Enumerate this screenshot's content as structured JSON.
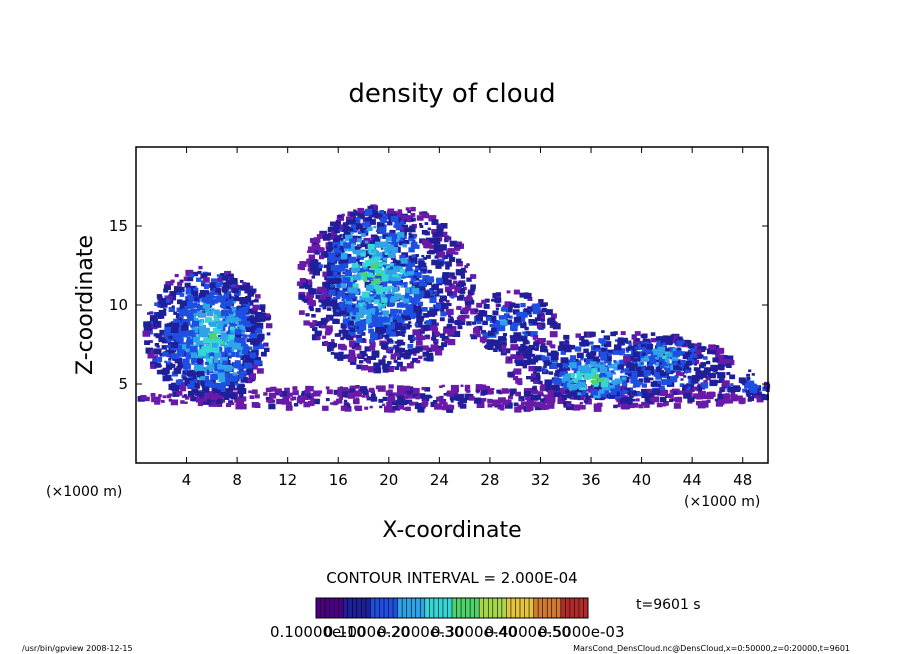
{
  "chart_data": {
    "type": "heatmap",
    "title": "density of cloud",
    "xlabel": "X-coordinate",
    "ylabel": "Z-coordinate",
    "x_unit": "(×1000 m)",
    "z_unit": "(×1000 m)",
    "xlim": [
      0,
      50
    ],
    "ylim": [
      0,
      20
    ],
    "x_ticks": [
      4,
      8,
      12,
      16,
      20,
      24,
      28,
      32,
      36,
      40,
      44,
      48
    ],
    "y_ticks": [
      5,
      10,
      15
    ],
    "grid": false,
    "contour_interval_text": "CONTOUR INTERVAL = 2.000E-04",
    "time_text": "t=9601 s",
    "colorbar_labels": [
      "0.10000e-10",
      "0.1000e-20",
      "0.2000e-30",
      "0.3000e-40",
      "0.4000e-50",
      "0.5000e-03"
    ],
    "colorbar_colors": [
      "#4b0082",
      "#1f1f9a",
      "#1e4fe0",
      "#2ea3e8",
      "#35d6d6",
      "#4fd26b",
      "#a6d84a",
      "#e6c43c",
      "#d27a32",
      "#b32a2a"
    ],
    "regions": [
      {
        "x": [
          0,
          50
        ],
        "z": [
          3.5,
          5.0
        ],
        "level": 0.15
      },
      {
        "x": [
          0.5,
          10.5
        ],
        "z": [
          4.0,
          12.5
        ],
        "level": 0.45
      },
      {
        "x": [
          2.5,
          9.5
        ],
        "z": [
          4.5,
          11.5
        ],
        "level": 0.65
      },
      {
        "x": [
          12.5,
          26.5
        ],
        "z": [
          6.0,
          16.5
        ],
        "level": 0.35
      },
      {
        "x": [
          15.0,
          22.5
        ],
        "z": [
          8.0,
          16.2
        ],
        "level": 0.7
      },
      {
        "x": [
          26.0,
          33.0
        ],
        "z": [
          7.0,
          11.0
        ],
        "level": 0.35
      },
      {
        "x": [
          29.0,
          47.0
        ],
        "z": [
          4.0,
          8.5
        ],
        "level": 0.4
      },
      {
        "x": [
          33.0,
          39.0
        ],
        "z": [
          4.2,
          6.8
        ],
        "level": 0.75
      },
      {
        "x": [
          38.5,
          44.5
        ],
        "z": [
          5.5,
          8.2
        ],
        "level": 0.5
      },
      {
        "x": [
          46.0,
          50.0
        ],
        "z": [
          4.0,
          6.0
        ],
        "level": 0.35
      }
    ]
  },
  "footer": {
    "left": "/usr/bin/gpview   2008-12-15",
    "right": "MarsCond_DensCloud.nc@DensCloud,x=0:50000,z=0:20000,t=9601"
  }
}
